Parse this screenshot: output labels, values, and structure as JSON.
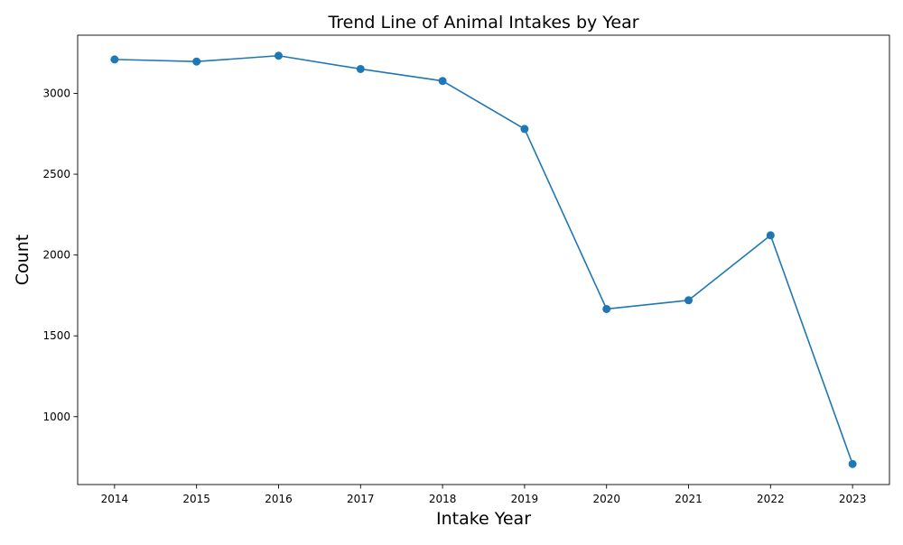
{
  "chart_data": {
    "type": "line",
    "title": "Trend Line of Animal Intakes by Year",
    "xlabel": "Intake Year",
    "ylabel": "Count",
    "x": [
      2014,
      2015,
      2016,
      2017,
      2018,
      2019,
      2020,
      2021,
      2022,
      2023
    ],
    "series": [
      {
        "values": [
          3210,
          3197,
          3233,
          3151,
          3077,
          2780,
          1666,
          1720,
          2122,
          707
        ],
        "color": "#1f77b4",
        "marker": "circle"
      }
    ],
    "xlim": [
      2013.55,
      2023.45
    ],
    "ylim": [
      580,
      3360
    ],
    "x_ticks": [
      2014,
      2015,
      2016,
      2017,
      2018,
      2019,
      2020,
      2021,
      2022,
      2023
    ],
    "y_ticks": [
      1000,
      1500,
      2000,
      2500,
      3000
    ],
    "grid": false,
    "legend": "none"
  }
}
